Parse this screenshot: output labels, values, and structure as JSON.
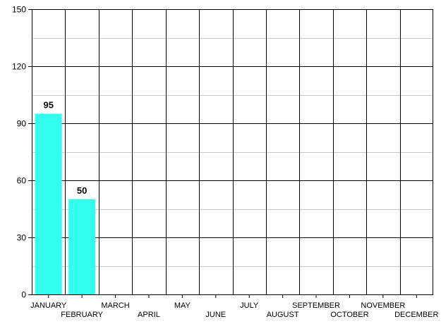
{
  "chart_data": {
    "type": "bar",
    "categories": [
      "JANUARY",
      "FEBRUARY",
      "MARCH",
      "APRIL",
      "MAY",
      "JUNE",
      "JULY",
      "AUGUST",
      "SEPTEMBER",
      "OCTOBER",
      "NOVEMBER",
      "DECEMBER"
    ],
    "series": [
      {
        "values": [
          95,
          50,
          null,
          null,
          null,
          null,
          null,
          null,
          null,
          null,
          null,
          null
        ],
        "color": "#33ffee"
      }
    ],
    "data_labels": [
      "95",
      "50",
      "",
      "",
      "",
      "",
      "",
      "",
      "",
      "",
      "",
      ""
    ],
    "ylim": [
      0,
      150
    ],
    "yticks": [
      0,
      30,
      60,
      90,
      120,
      150
    ],
    "ytick_labels": [
      "0",
      "30",
      "60",
      "90",
      "120",
      "150"
    ],
    "minor_gridlines_y": [
      15,
      45,
      75,
      105,
      135
    ],
    "grid": true,
    "title": "",
    "xlabel": "",
    "ylabel": "",
    "colors": {
      "bar": "#33ffee",
      "major_grid": "#000000",
      "minor_grid": "#c8c8c8",
      "text": "#000000"
    }
  }
}
